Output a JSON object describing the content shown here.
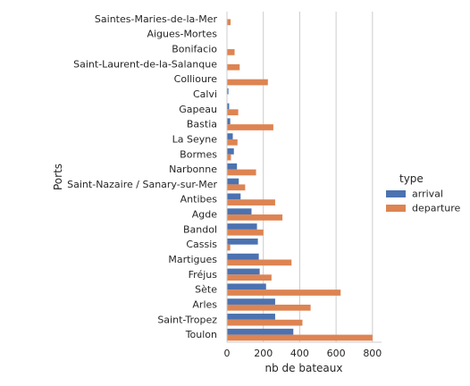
{
  "chart_data": {
    "type": "bar",
    "orientation": "horizontal",
    "xlabel": "nb de bateaux",
    "ylabel": "Ports",
    "xlim": [
      0,
      850
    ],
    "xticks": [
      0,
      200,
      400,
      600,
      800
    ],
    "grid": "vertical",
    "legend_title": "type",
    "legend_position": "right",
    "categories": [
      "Saintes-Maries-de-la-Mer",
      "Aigues-Mortes",
      "Bonifacio",
      "Saint-Laurent-de-la-Salanque",
      "Collioure",
      "Calvi",
      "Gapeau",
      "Bastia",
      "La Seyne",
      "Bormes",
      "Narbonne",
      "Saint-Nazaire / Sanary-sur-Mer",
      "Antibes",
      "Agde",
      "Bandol",
      "Cassis",
      "Martigues",
      "Fréjus",
      "Sète",
      "Arles",
      "Saint-Tropez",
      "Toulon"
    ],
    "series": [
      {
        "name": "arrival",
        "color": "#4c72b0",
        "values": [
          0,
          0,
          0,
          0,
          2,
          8,
          12,
          18,
          32,
          38,
          55,
          65,
          75,
          135,
          165,
          170,
          175,
          180,
          215,
          265,
          265,
          365
        ]
      },
      {
        "name": "departure",
        "color": "#dd8452",
        "values": [
          20,
          0,
          42,
          70,
          225,
          0,
          62,
          255,
          58,
          22,
          160,
          100,
          265,
          305,
          200,
          18,
          355,
          245,
          625,
          460,
          415,
          800
        ]
      }
    ]
  }
}
